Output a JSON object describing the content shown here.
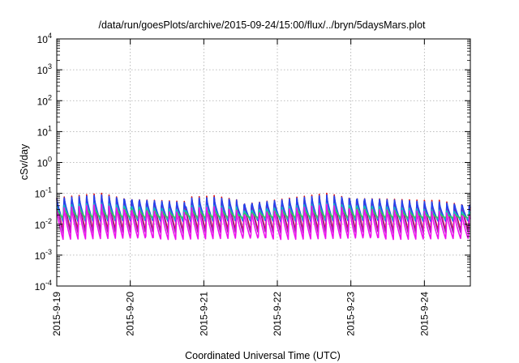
{
  "chart_data": {
    "type": "line",
    "title": "/data/run/goesPlots/archive/2015-09-24/15:00/flux/../bryn/5daysMars.plot",
    "xlabel": "Coordinated Universal Time (UTC)",
    "ylabel": "cSv/day",
    "y_scale": "log",
    "ylim": [
      0.0001,
      10000
    ],
    "y_ticks": [
      {
        "value": 0.0001,
        "base": "10",
        "exp": "-4"
      },
      {
        "value": 0.001,
        "base": "10",
        "exp": "-3"
      },
      {
        "value": 0.01,
        "base": "10",
        "exp": "-2"
      },
      {
        "value": 0.1,
        "base": "10",
        "exp": "-1"
      },
      {
        "value": 1,
        "base": "10",
        "exp": "0"
      },
      {
        "value": 10,
        "base": "10",
        "exp": "1"
      },
      {
        "value": 100,
        "base": "10",
        "exp": "2"
      },
      {
        "value": 1000,
        "base": "10",
        "exp": "3"
      },
      {
        "value": 10000,
        "base": "10",
        "exp": "4"
      }
    ],
    "xlim": [
      "2015-09-19 00:00",
      "2015-09-24 15:00"
    ],
    "x_ticks": [
      "2015-9-19",
      "2015-9-20",
      "2015-9-21",
      "2015-9-22",
      "2015-9-23",
      "2015-9-24"
    ],
    "grid": true,
    "cycle_hours": 2.45,
    "series": [
      {
        "color": "#dd1010",
        "low": 0.006,
        "high": 0.08
      },
      {
        "color": "#9a22aa",
        "low": 0.005,
        "high": 0.07
      },
      {
        "color": "#2244ee",
        "low": 0.012,
        "high": 0.07
      },
      {
        "color": "#11b8c8",
        "low": 0.014,
        "high": 0.038
      },
      {
        "color": "#30c860",
        "low": 0.016,
        "high": 0.03
      },
      {
        "color": "#ee11ee",
        "low": 0.0032,
        "high": 0.035
      }
    ]
  }
}
